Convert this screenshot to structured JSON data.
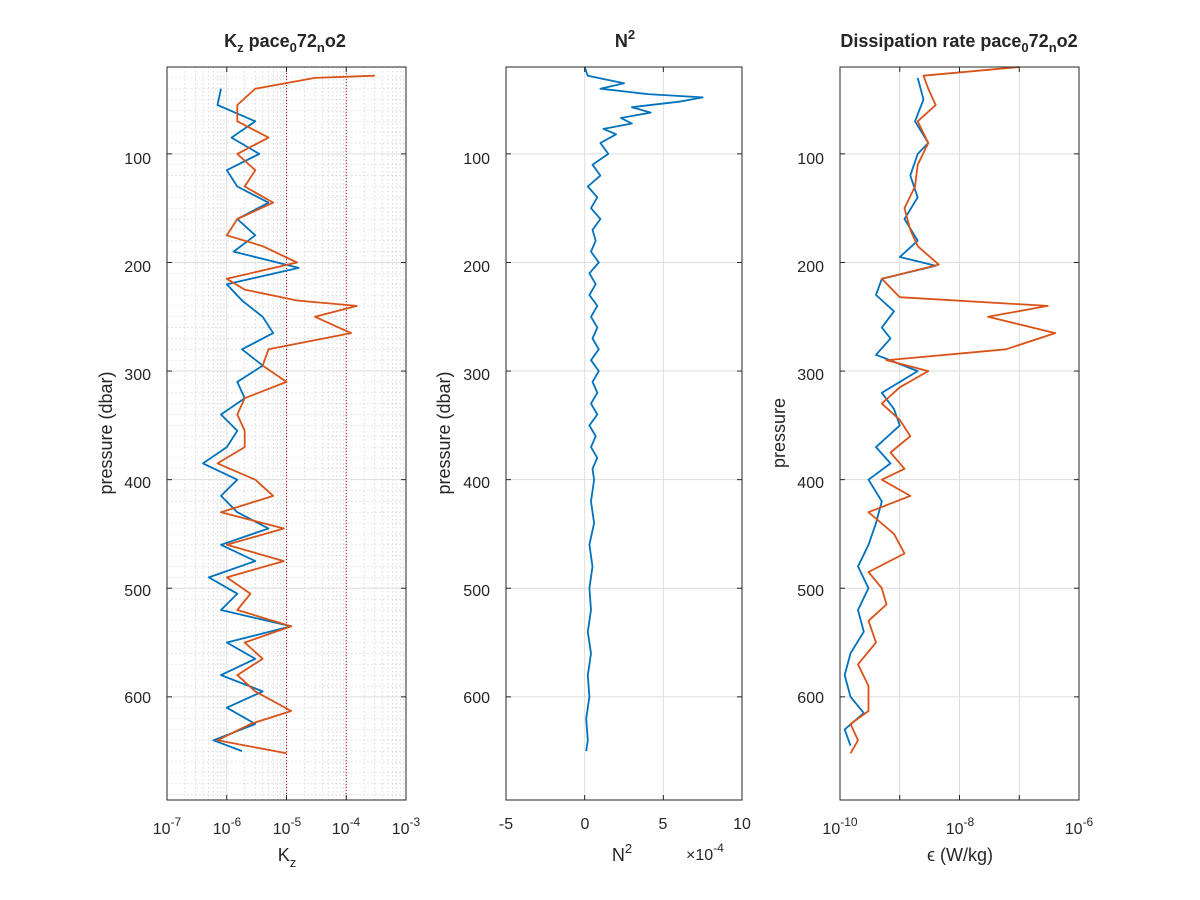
{
  "colors": {
    "series1": "#0072BD",
    "series2": "#D95319",
    "grid": "#dedede",
    "axis": "#262626",
    "ref_line": "#cc0000"
  },
  "chart_data": [
    {
      "type": "line",
      "title": "K",
      "title_sub": "z",
      "title_rest": " pace",
      "title_sub2": "0",
      "title_mid": "72",
      "title_sub3": "n",
      "title_end": "o2",
      "xscale": "log",
      "xlim": [
        1e-07,
        0.001
      ],
      "ylim": [
        20,
        695
      ],
      "y_reversed": true,
      "grid": "on (major + minor)",
      "xtick_labels": [
        "10-7",
        "10-6",
        "10-5",
        "10-4",
        "10-3"
      ],
      "xtick_exponents": [
        "-7",
        "-6",
        "-5",
        "-4",
        "-3"
      ],
      "xtick_base": "10",
      "ytick_labels": [
        "100",
        "200",
        "300",
        "400",
        "500",
        "600"
      ],
      "xlabel": "K",
      "xlabel_sub": "z",
      "ylabel": "pressure (dbar)",
      "reference_lines_x": [
        1e-05,
        0.0001
      ],
      "series": [
        {
          "y": [
            40,
            55,
            70,
            85,
            100,
            115,
            130,
            145,
            160,
            175,
            190,
            205,
            220,
            235,
            250,
            265,
            280,
            295,
            310,
            325,
            340,
            355,
            370,
            385,
            400,
            415,
            430,
            445,
            460,
            475,
            490,
            505,
            520,
            535,
            550,
            565,
            580,
            595,
            610,
            625,
            640,
            650
          ],
          "values": [
            8e-07,
            7e-07,
            3e-06,
            1.2e-06,
            3.5e-06,
            1e-06,
            1.5e-06,
            5e-06,
            1.5e-06,
            3e-06,
            1.3e-06,
            1.6e-05,
            1e-06,
            1.8e-06,
            4e-06,
            6e-06,
            1.8e-06,
            4e-06,
            1.5e-06,
            2e-06,
            8e-07,
            1.5e-06,
            1e-06,
            4e-07,
            1.5e-06,
            8e-07,
            1.5e-06,
            5e-06,
            8e-07,
            3e-06,
            5e-07,
            1.5e-06,
            8e-07,
            1.2e-05,
            1e-06,
            3e-06,
            8e-07,
            4e-06,
            1e-06,
            3e-06,
            6e-07,
            1.8e-06
          ]
        },
        {
          "y": [
            28,
            30,
            40,
            55,
            70,
            85,
            100,
            115,
            130,
            145,
            160,
            175,
            185,
            200,
            215,
            225,
            235,
            240,
            250,
            265,
            280,
            295,
            310,
            325,
            340,
            355,
            370,
            385,
            400,
            415,
            430,
            445,
            460,
            475,
            490,
            505,
            520,
            535,
            550,
            565,
            580,
            595,
            613,
            625,
            640,
            652
          ],
          "values": [
            0.0003,
            3e-05,
            3e-06,
            1.5e-06,
            1.5e-06,
            5e-06,
            1.5e-06,
            3e-06,
            2e-06,
            6e-06,
            1.5e-06,
            1e-06,
            4e-06,
            1.5e-05,
            1e-06,
            2e-06,
            1.5e-05,
            0.00015,
            3e-05,
            0.00012,
            5e-06,
            4e-06,
            1e-05,
            2e-06,
            1.5e-06,
            2e-06,
            2e-06,
            7e-07,
            3e-06,
            6e-06,
            8e-07,
            9e-06,
            1e-06,
            9e-06,
            1e-06,
            2.5e-06,
            1.5e-06,
            1.2e-05,
            2e-06,
            4e-06,
            1.5e-06,
            3e-06,
            1.2e-05,
            2.5e-06,
            7e-07,
            1e-05
          ]
        }
      ]
    },
    {
      "type": "line",
      "title": "N",
      "title_sup": "2",
      "xlim": [
        -5,
        10
      ],
      "ylim": [
        20,
        695
      ],
      "y_reversed": true,
      "grid": "on",
      "xtick_labels": [
        "-5",
        "0",
        "5",
        "10"
      ],
      "xtick_values": [
        -5,
        0,
        5,
        10
      ],
      "ytick_labels": [
        "100",
        "200",
        "300",
        "400",
        "500",
        "600"
      ],
      "xlabel": "N",
      "xlabel_sup": "2",
      "x_multiplier": "×10",
      "x_multiplier_exp": "-4",
      "ylabel": "pressure (dbar)",
      "series": [
        {
          "y": [
            20,
            28,
            35,
            40,
            45,
            48,
            52,
            57,
            62,
            67,
            72,
            77,
            82,
            90,
            100,
            110,
            120,
            130,
            140,
            150,
            160,
            170,
            180,
            190,
            200,
            210,
            220,
            230,
            240,
            250,
            260,
            270,
            280,
            290,
            300,
            310,
            320,
            330,
            340,
            350,
            360,
            370,
            380,
            390,
            400,
            420,
            440,
            460,
            480,
            500,
            520,
            540,
            560,
            580,
            600,
            620,
            640,
            650
          ],
          "values": [
            0.0,
            0.2,
            2.5,
            1.0,
            4.0,
            7.5,
            6.0,
            3.0,
            4.2,
            2.3,
            3.0,
            1.2,
            2.0,
            1.0,
            1.5,
            0.5,
            1.0,
            0.2,
            0.8,
            0.4,
            1.0,
            0.5,
            0.7,
            0.4,
            0.9,
            0.3,
            0.7,
            0.3,
            0.8,
            0.4,
            0.8,
            0.5,
            0.9,
            0.4,
            0.9,
            0.5,
            0.8,
            0.4,
            0.8,
            0.3,
            0.7,
            0.4,
            0.8,
            0.5,
            0.6,
            0.4,
            0.6,
            0.3,
            0.5,
            0.3,
            0.4,
            0.2,
            0.4,
            0.2,
            0.3,
            0.1,
            0.2,
            0.1
          ]
        }
      ]
    },
    {
      "type": "line",
      "title": "Dissipation rate pace",
      "title_sub": "0",
      "title_rest": "72",
      "title_sub2": "n",
      "title_end": "o2",
      "xscale": "log",
      "xlim": [
        1e-10,
        1e-06
      ],
      "ylim": [
        20,
        695
      ],
      "y_reversed": true,
      "grid": "on",
      "xtick_labels": [
        "10-10",
        "10-8",
        "10-6"
      ],
      "xtick_exponents": [
        "-10",
        "-8",
        "-6"
      ],
      "xtick_base": "10",
      "ytick_labels": [
        "100",
        "200",
        "300",
        "400",
        "500",
        "600"
      ],
      "xlabel": "ϵ (W/kg)",
      "ylabel": "pressure",
      "series": [
        {
          "y": [
            30,
            50,
            70,
            90,
            100,
            120,
            140,
            160,
            180,
            195,
            203,
            215,
            230,
            245,
            260,
            270,
            285,
            300,
            320,
            335,
            350,
            370,
            385,
            400,
            420,
            440,
            460,
            480,
            500,
            520,
            540,
            560,
            580,
            600,
            615,
            630,
            645
          ],
          "values": [
            2e-09,
            2.5e-09,
            1.8e-09,
            3e-09,
            2e-09,
            1.5e-09,
            2e-09,
            1.2e-09,
            2e-09,
            1e-09,
            4e-09,
            5e-10,
            4e-10,
            8e-10,
            5e-10,
            7e-10,
            4e-10,
            2e-09,
            5e-10,
            8e-10,
            1e-09,
            4e-10,
            7e-10,
            3e-10,
            5e-10,
            4e-10,
            3e-10,
            2e-10,
            3e-10,
            2e-10,
            2.5e-10,
            1.5e-10,
            1.2e-10,
            1.5e-10,
            2.5e-10,
            1.2e-10,
            1.5e-10
          ]
        },
        {
          "y": [
            20,
            28,
            40,
            55,
            70,
            90,
            110,
            130,
            150,
            170,
            185,
            202,
            215,
            232,
            240,
            250,
            265,
            280,
            290,
            300,
            315,
            330,
            345,
            360,
            375,
            390,
            400,
            415,
            430,
            450,
            468,
            485,
            500,
            515,
            530,
            550,
            570,
            590,
            613,
            625,
            640,
            652
          ],
          "values": [
            1e-07,
            2.5e-09,
            3e-09,
            4e-09,
            2e-09,
            3e-09,
            2e-09,
            1.8e-09,
            1.2e-09,
            1.5e-09,
            2e-09,
            4.5e-09,
            5e-10,
            1e-09,
            3e-07,
            3e-08,
            4e-07,
            6e-08,
            6e-10,
            3e-09,
            1e-09,
            5e-10,
            1e-09,
            1.5e-09,
            7e-10,
            1.2e-09,
            5e-10,
            1.5e-09,
            3e-10,
            8e-10,
            1.2e-09,
            3e-10,
            5e-10,
            6e-10,
            3e-10,
            4e-10,
            2e-10,
            3e-10,
            3e-10,
            1.5e-10,
            2e-10,
            1.5e-10
          ]
        }
      ]
    }
  ]
}
